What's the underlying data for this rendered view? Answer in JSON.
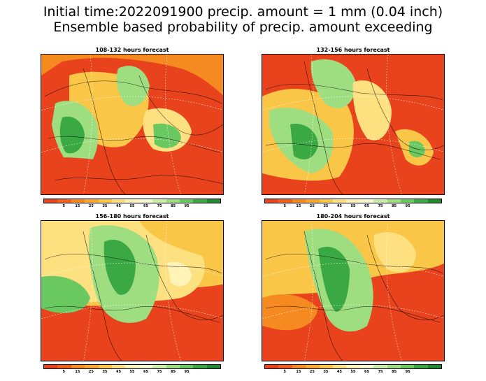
{
  "title": {
    "line1": "Initial time:2022091900 precip. amount = 1 mm (0.04 inch)",
    "line2": "Ensemble based probability of precip. amount exceeding"
  },
  "panels": [
    {
      "title": "108-132 hours forecast"
    },
    {
      "title": "132-156 hours forecast"
    },
    {
      "title": "156-180 hours forecast"
    },
    {
      "title": "180-204 hours forecast"
    }
  ],
  "colorbar": {
    "colors": [
      "#e8431c",
      "#f0601e",
      "#f58a20",
      "#f8a830",
      "#f9c648",
      "#fde080",
      "#fff3b8",
      "#f4fbd0",
      "#cdeea8",
      "#9fde80",
      "#6ac860",
      "#3aa843",
      "#1f8a30"
    ],
    "labels": [
      "5",
      "15",
      "25",
      "35",
      "45",
      "55",
      "65",
      "75",
      "85",
      "95"
    ]
  }
}
